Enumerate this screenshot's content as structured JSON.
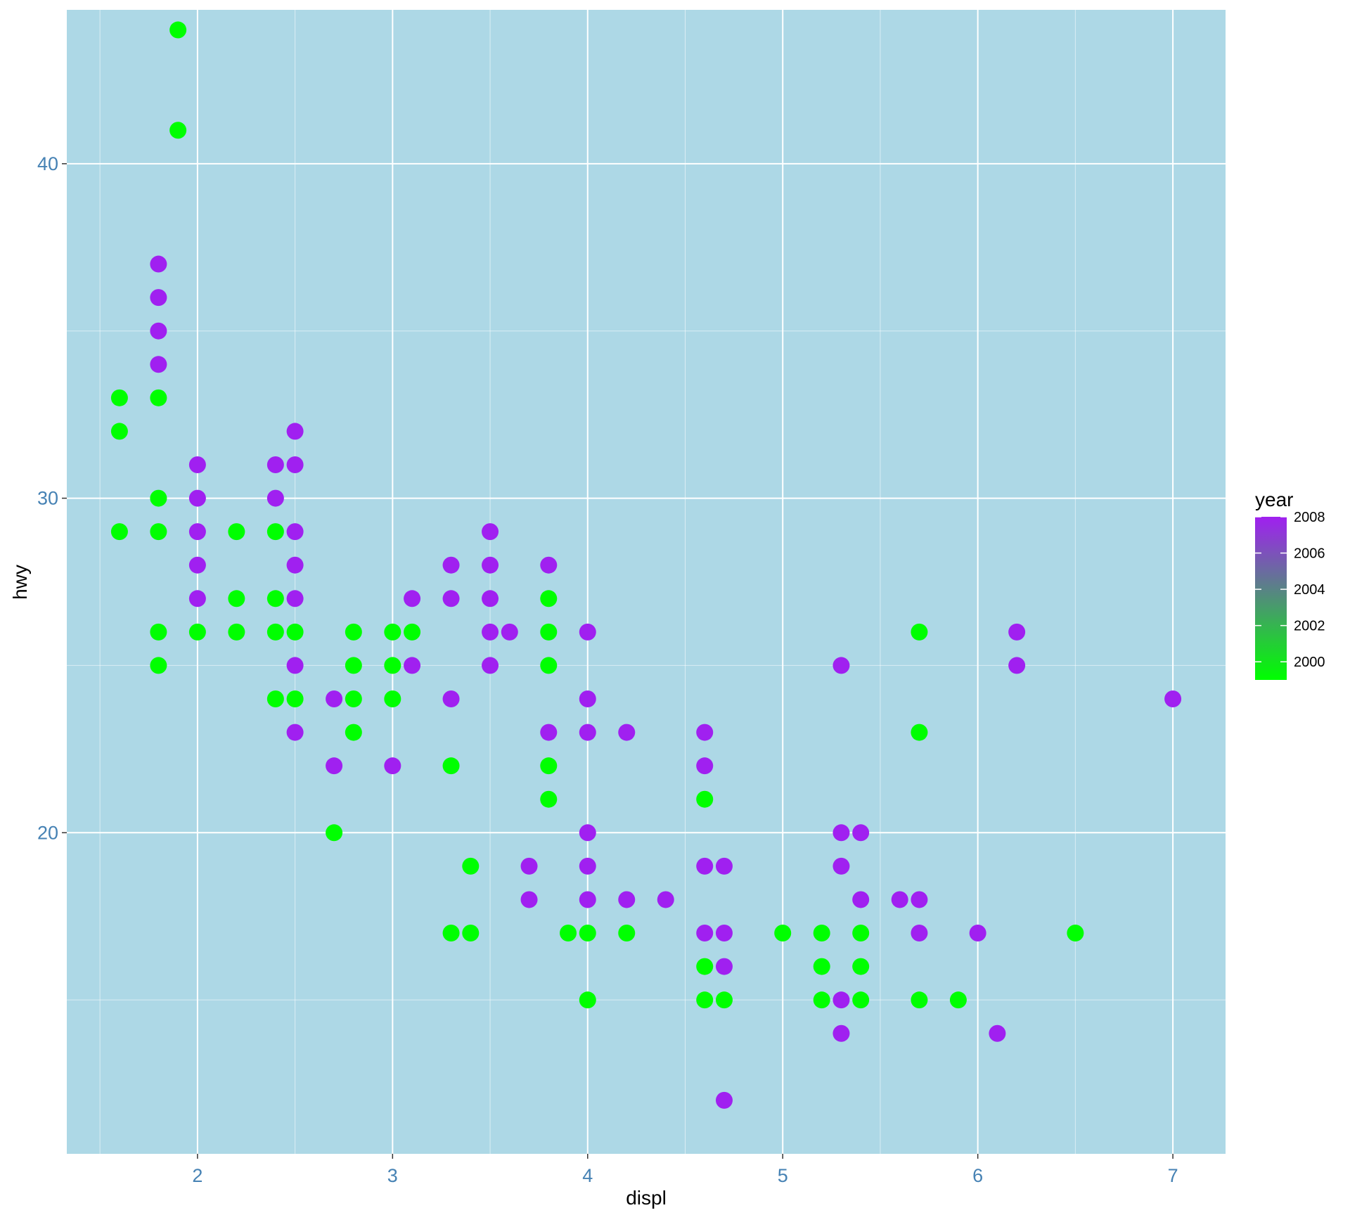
{
  "chart_data": {
    "type": "scatter",
    "xlabel": "displ",
    "ylabel": "hwy",
    "xlim": [
      1.33,
      7.27
    ],
    "ylim": [
      10.4,
      44.6
    ],
    "x_ticks": [
      2,
      3,
      4,
      5,
      6,
      7
    ],
    "x_tick_labels": [
      "2",
      "3",
      "4",
      "5",
      "6",
      "7"
    ],
    "x_minor_ticks": [
      1.5,
      2.5,
      3.5,
      4.5,
      5.5,
      6.5
    ],
    "y_ticks": [
      20,
      30,
      40
    ],
    "y_tick_labels": [
      "20",
      "30",
      "40"
    ],
    "y_minor_ticks": [
      15,
      25,
      35,
      45
    ],
    "grid": true,
    "panel_background": "#add8e6",
    "grid_color": "#ffffff",
    "tick_label_color": "#4682b4",
    "color_scale": {
      "title": "year",
      "low": 1999,
      "high": 2008,
      "low_color": "#00ff00",
      "high_color": "#a020f0",
      "breaks": [
        2000,
        2002,
        2004,
        2006,
        2008
      ],
      "break_labels": [
        "2000",
        "2002",
        "2004",
        "2006",
        "2008"
      ],
      "position": "right"
    },
    "series": [
      {
        "year": 1999,
        "color": "#00ff00",
        "points": [
          [
            1.6,
            33
          ],
          [
            1.6,
            32
          ],
          [
            1.6,
            29
          ],
          [
            1.8,
            33
          ],
          [
            1.8,
            30
          ],
          [
            1.8,
            29
          ],
          [
            1.8,
            26
          ],
          [
            1.8,
            25
          ],
          [
            1.9,
            44
          ],
          [
            1.9,
            41
          ],
          [
            2.0,
            26
          ],
          [
            2.2,
            29
          ],
          [
            2.2,
            27
          ],
          [
            2.2,
            26
          ],
          [
            2.4,
            29
          ],
          [
            2.4,
            27
          ],
          [
            2.4,
            26
          ],
          [
            2.4,
            24
          ],
          [
            2.5,
            26
          ],
          [
            2.5,
            24
          ],
          [
            2.7,
            20
          ],
          [
            2.8,
            26
          ],
          [
            2.8,
            25
          ],
          [
            2.8,
            24
          ],
          [
            2.8,
            23
          ],
          [
            3.0,
            26
          ],
          [
            3.0,
            25
          ],
          [
            3.0,
            24
          ],
          [
            3.1,
            26
          ],
          [
            3.3,
            22
          ],
          [
            3.3,
            17
          ],
          [
            3.4,
            19
          ],
          [
            3.4,
            17
          ],
          [
            3.8,
            27
          ],
          [
            3.8,
            26
          ],
          [
            3.8,
            25
          ],
          [
            3.8,
            22
          ],
          [
            3.8,
            21
          ],
          [
            3.9,
            17
          ],
          [
            4.0,
            17
          ],
          [
            4.0,
            15
          ],
          [
            4.2,
            17
          ],
          [
            4.6,
            21
          ],
          [
            4.6,
            16
          ],
          [
            4.6,
            15
          ],
          [
            4.7,
            15
          ],
          [
            5.0,
            17
          ],
          [
            5.2,
            17
          ],
          [
            5.2,
            16
          ],
          [
            5.2,
            15
          ],
          [
            5.4,
            17
          ],
          [
            5.4,
            16
          ],
          [
            5.4,
            15
          ],
          [
            5.7,
            26
          ],
          [
            5.7,
            23
          ],
          [
            5.7,
            15
          ],
          [
            5.9,
            15
          ],
          [
            6.5,
            17
          ]
        ]
      },
      {
        "year": 2008,
        "color": "#a020f0",
        "points": [
          [
            1.8,
            37
          ],
          [
            1.8,
            36
          ],
          [
            1.8,
            35
          ],
          [
            1.8,
            34
          ],
          [
            2.0,
            31
          ],
          [
            2.0,
            30
          ],
          [
            2.0,
            29
          ],
          [
            2.0,
            28
          ],
          [
            2.0,
            27
          ],
          [
            2.4,
            31
          ],
          [
            2.4,
            30
          ],
          [
            2.5,
            32
          ],
          [
            2.5,
            31
          ],
          [
            2.5,
            29
          ],
          [
            2.5,
            28
          ],
          [
            2.5,
            27
          ],
          [
            2.5,
            25
          ],
          [
            2.5,
            23
          ],
          [
            2.7,
            24
          ],
          [
            2.7,
            22
          ],
          [
            3.0,
            22
          ],
          [
            3.1,
            27
          ],
          [
            3.1,
            25
          ],
          [
            3.3,
            28
          ],
          [
            3.3,
            27
          ],
          [
            3.3,
            24
          ],
          [
            3.5,
            29
          ],
          [
            3.5,
            28
          ],
          [
            3.5,
            27
          ],
          [
            3.5,
            26
          ],
          [
            3.5,
            25
          ],
          [
            3.6,
            26
          ],
          [
            3.7,
            19
          ],
          [
            3.7,
            18
          ],
          [
            3.8,
            28
          ],
          [
            3.8,
            23
          ],
          [
            4.0,
            26
          ],
          [
            4.0,
            24
          ],
          [
            4.0,
            23
          ],
          [
            4.0,
            20
          ],
          [
            4.0,
            19
          ],
          [
            4.0,
            18
          ],
          [
            4.2,
            23
          ],
          [
            4.2,
            18
          ],
          [
            4.4,
            18
          ],
          [
            4.6,
            23
          ],
          [
            4.6,
            22
          ],
          [
            4.6,
            19
          ],
          [
            4.6,
            17
          ],
          [
            4.7,
            19
          ],
          [
            4.7,
            17
          ],
          [
            4.7,
            16
          ],
          [
            4.7,
            12
          ],
          [
            5.3,
            25
          ],
          [
            5.3,
            20
          ],
          [
            5.3,
            19
          ],
          [
            5.3,
            15
          ],
          [
            5.3,
            14
          ],
          [
            5.4,
            20
          ],
          [
            5.4,
            18
          ],
          [
            5.6,
            18
          ],
          [
            5.7,
            18
          ],
          [
            5.7,
            17
          ],
          [
            6.0,
            17
          ],
          [
            6.1,
            14
          ],
          [
            6.2,
            26
          ],
          [
            6.2,
            25
          ],
          [
            7.0,
            24
          ]
        ]
      }
    ]
  }
}
